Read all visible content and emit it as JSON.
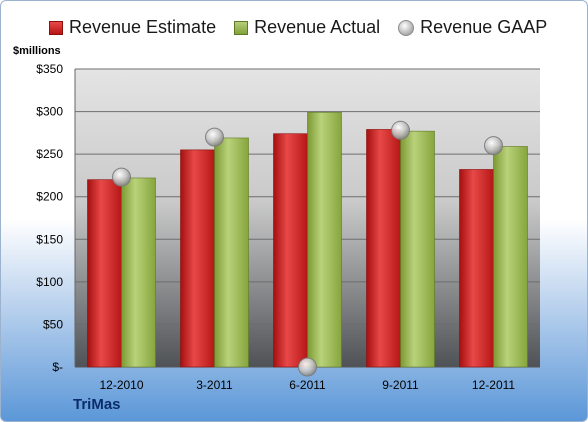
{
  "chart_data": {
    "type": "bar",
    "categories": [
      "12-2010",
      "3-2011",
      "6-2011",
      "9-2011",
      "12-2011"
    ],
    "series": [
      {
        "name": "Revenue Estimate",
        "values": [
          220,
          255,
          274,
          279,
          232
        ],
        "color": "#c81d1d"
      },
      {
        "name": "Revenue Actual",
        "values": [
          222,
          269,
          299,
          277,
          259
        ],
        "color": "#9bbb59"
      },
      {
        "name": "Revenue GAAP",
        "values": [
          223,
          270,
          0,
          278,
          260
        ],
        "color": "#b0b0b0",
        "marker": "circle"
      }
    ],
    "ylabel": "$millions",
    "ylim": [
      0,
      350
    ],
    "yticks": [
      0,
      50,
      100,
      150,
      200,
      250,
      300,
      350
    ],
    "ytick_labels": [
      "$-",
      "$50",
      "$100",
      "$150",
      "$200",
      "$250",
      "$300",
      "$350"
    ],
    "grid": true,
    "legend_position": "top"
  },
  "company": "TriMas"
}
